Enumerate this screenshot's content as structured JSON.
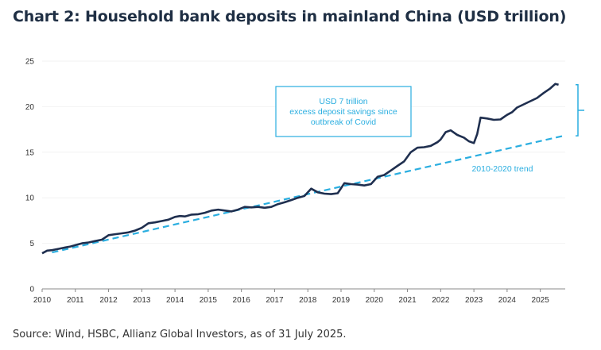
{
  "header": {
    "title": "Chart 2: Household bank deposits in mainland China (USD trillion)"
  },
  "footer": {
    "source": "Source: Wind, HSBC, Allianz Global Investors, as of 31 July 2025."
  },
  "colors": {
    "series": "#1f2f4f",
    "trend": "#2aaee0",
    "axis": "#888888",
    "text": "#333333"
  },
  "chart_data": {
    "type": "line",
    "title": "Chart 2: Household bank deposits in mainland China (USD trillion)",
    "xlabel": "",
    "ylabel": "",
    "xlim": [
      2010,
      2025.75
    ],
    "ylim": [
      0,
      25
    ],
    "x_ticks": [
      "2010",
      "2011",
      "2012",
      "2013",
      "2014",
      "2015",
      "2016",
      "2017",
      "2018",
      "2019",
      "2020",
      "2021",
      "2022",
      "2023",
      "2024",
      "2025"
    ],
    "y_ticks": [
      "0",
      "5",
      "10",
      "15",
      "20",
      "25"
    ],
    "series": [
      {
        "name": "Household bank deposits",
        "x": [
          2010.0,
          2010.15,
          2010.3,
          2010.5,
          2010.7,
          2010.85,
          2011.0,
          2011.2,
          2011.4,
          2011.6,
          2011.8,
          2012.0,
          2012.2,
          2012.4,
          2012.6,
          2012.8,
          2013.0,
          2013.2,
          2013.4,
          2013.6,
          2013.8,
          2014.0,
          2014.15,
          2014.3,
          2014.5,
          2014.7,
          2014.9,
          2015.1,
          2015.3,
          2015.5,
          2015.7,
          2015.9,
          2016.1,
          2016.3,
          2016.5,
          2016.7,
          2016.9,
          2017.1,
          2017.3,
          2017.5,
          2017.7,
          2017.9,
          2018.1,
          2018.3,
          2018.5,
          2018.7,
          2018.9,
          2019.1,
          2019.3,
          2019.5,
          2019.7,
          2019.9,
          2020.1,
          2020.3,
          2020.5,
          2020.7,
          2020.9,
          2021.1,
          2021.3,
          2021.5,
          2021.7,
          2021.9,
          2022.0,
          2022.15,
          2022.3,
          2022.5,
          2022.7,
          2022.85,
          2023.0,
          2023.1,
          2023.2,
          2023.4,
          2023.6,
          2023.8,
          2024.0,
          2024.15,
          2024.3,
          2024.5,
          2024.7,
          2024.9,
          2025.1,
          2025.3,
          2025.45,
          2025.55
        ],
        "values": [
          3.9,
          4.2,
          4.25,
          4.4,
          4.55,
          4.65,
          4.8,
          5.0,
          5.1,
          5.25,
          5.4,
          5.9,
          6.0,
          6.1,
          6.2,
          6.4,
          6.7,
          7.2,
          7.3,
          7.45,
          7.6,
          7.9,
          8.0,
          7.95,
          8.15,
          8.2,
          8.35,
          8.6,
          8.7,
          8.6,
          8.5,
          8.7,
          9.0,
          8.95,
          9.0,
          8.9,
          9.0,
          9.3,
          9.5,
          9.75,
          10.0,
          10.2,
          11.0,
          10.6,
          10.45,
          10.4,
          10.5,
          11.6,
          11.5,
          11.45,
          11.35,
          11.5,
          12.3,
          12.5,
          13.0,
          13.5,
          14.0,
          15.0,
          15.5,
          15.55,
          15.7,
          16.1,
          16.4,
          17.2,
          17.4,
          16.9,
          16.6,
          16.2,
          16.0,
          17.0,
          18.8,
          18.7,
          18.55,
          18.6,
          19.1,
          19.4,
          19.9,
          20.25,
          20.6,
          20.95,
          21.5,
          22.0,
          22.5,
          22.4
        ]
      },
      {
        "name": "2010-2020 trend",
        "x": [
          2010.3,
          2025.7
        ],
        "values": [
          4.0,
          16.8
        ]
      }
    ],
    "annotations": {
      "box_lines": [
        "USD 7 trillion",
        "excess deposit savings since",
        "outbreak of Covid"
      ],
      "trend_label": "2010-2020 trend"
    }
  }
}
